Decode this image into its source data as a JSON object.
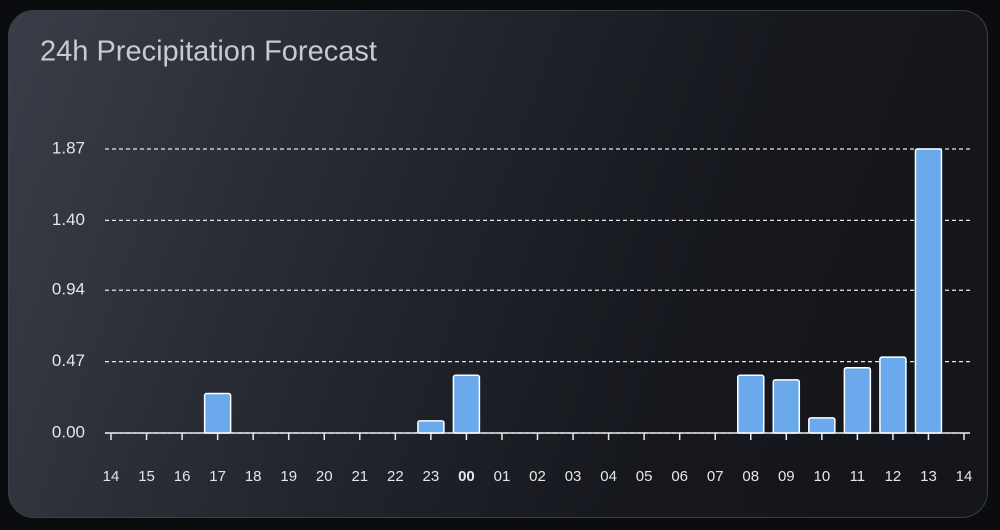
{
  "chart_data": {
    "type": "bar",
    "title": "24h Precipitation Forecast",
    "categories": [
      "14",
      "15",
      "16",
      "17",
      "18",
      "19",
      "20",
      "21",
      "22",
      "23",
      "00",
      "01",
      "02",
      "03",
      "04",
      "05",
      "06",
      "07",
      "08",
      "09",
      "10",
      "11",
      "12",
      "13",
      "14"
    ],
    "values": [
      0,
      0,
      0,
      0.26,
      0,
      0,
      0,
      0,
      0,
      0.08,
      0.38,
      0,
      0,
      0,
      0,
      0,
      0,
      0,
      0.38,
      0.35,
      0.1,
      0.43,
      0.5,
      1.87,
      null
    ],
    "color": "#6aa9ec",
    "ylim": [
      0,
      1.87
    ],
    "yticks": [
      {
        "value": 0,
        "label": "0.00"
      },
      0.47,
      0.94,
      {
        "value": 1.4,
        "label": "1.40"
      },
      1.87
    ],
    "grid": true
  }
}
